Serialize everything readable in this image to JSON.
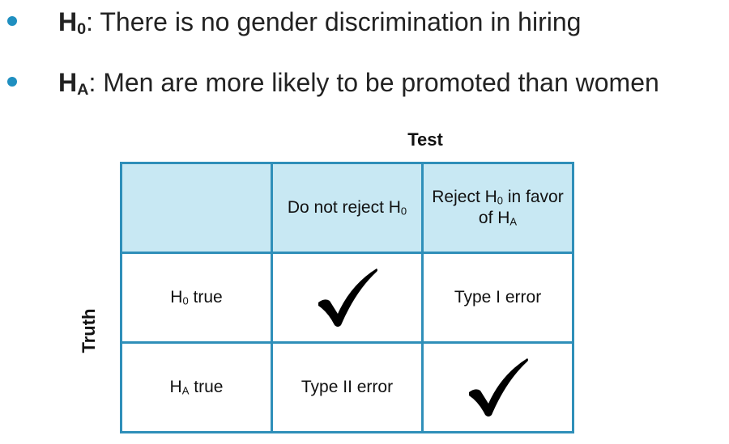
{
  "bullets": [
    [
      {
        "text": "H",
        "bold": true
      },
      {
        "sub": "0",
        "bold": true
      },
      {
        "text": ": There is no gender discrimination in hiring"
      }
    ],
    [
      {
        "text": "H",
        "bold": true
      },
      {
        "sub": "A",
        "bold": true
      },
      {
        "text": ": Men are more likely to be promoted than women"
      }
    ]
  ],
  "table": {
    "column_label": "Test",
    "row_label": "Truth",
    "header": [
      [
        {
          "text": "Do not reject H"
        },
        {
          "sub": "0"
        }
      ],
      [
        {
          "text": "Reject H"
        },
        {
          "sub": "0"
        },
        {
          "text": " in favor of H"
        },
        {
          "sub": "A"
        }
      ]
    ],
    "rows": [
      {
        "label": [
          {
            "text": "H"
          },
          {
            "sub": "0"
          },
          {
            "text": " true"
          }
        ],
        "cells": [
          {
            "check": true
          },
          {
            "segments": [
              {
                "text": "Type I error"
              }
            ]
          }
        ]
      },
      {
        "label": [
          {
            "text": "H"
          },
          {
            "sub": "A"
          },
          {
            "text": " true"
          }
        ],
        "cells": [
          {
            "segments": [
              {
                "text": "Type II error"
              }
            ]
          },
          {
            "check": true
          }
        ]
      }
    ]
  }
}
